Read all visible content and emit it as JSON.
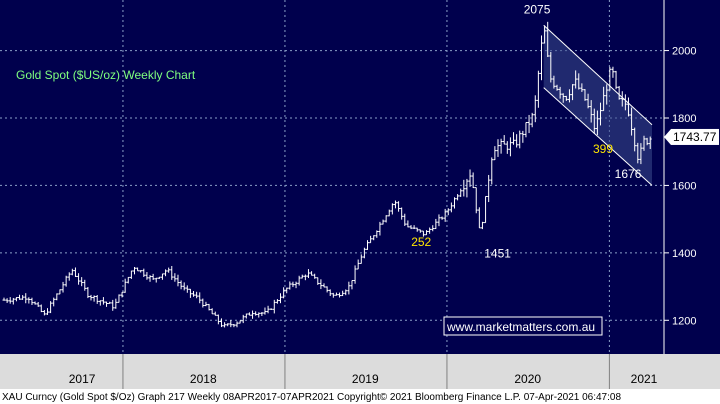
{
  "chart_data": {
    "type": "candlestick",
    "title": "Gold Spot ($US/oz) Weekly Chart",
    "ylim": [
      1100,
      2150
    ],
    "yticks": [
      1200,
      1400,
      1600,
      1800,
      2000
    ],
    "x_range": [
      "2017-04-08",
      "2021-04-07"
    ],
    "x_labels": [
      "2017",
      "2018",
      "2019",
      "2020",
      "2021"
    ],
    "last_value": "1743.77",
    "grid": true,
    "path": [
      [
        "2017-04-08",
        1260
      ],
      [
        "2017-06-01",
        1270
      ],
      [
        "2017-07-08",
        1215
      ],
      [
        "2017-09-08",
        1350
      ],
      [
        "2017-10-15",
        1275
      ],
      [
        "2017-12-12",
        1240
      ],
      [
        "2018-01-25",
        1360
      ],
      [
        "2018-03-10",
        1320
      ],
      [
        "2018-04-10",
        1350
      ],
      [
        "2018-05-20",
        1290
      ],
      [
        "2018-06-20",
        1265
      ],
      [
        "2018-08-16",
        1180
      ],
      [
        "2018-09-15",
        1195
      ],
      [
        "2018-10-20",
        1225
      ],
      [
        "2018-11-20",
        1220
      ],
      [
        "2019-01-01",
        1290
      ],
      [
        "2019-02-20",
        1340
      ],
      [
        "2019-04-23",
        1270
      ],
      [
        "2019-05-25",
        1300
      ],
      [
        "2019-06-25",
        1400
      ],
      [
        "2019-08-10",
        1500
      ],
      [
        "2019-09-05",
        1555
      ],
      [
        "2019-10-01",
        1480
      ],
      [
        "2019-11-12",
        1455
      ],
      [
        "2019-12-31",
        1520
      ],
      [
        "2020-02-24",
        1640
      ],
      [
        "2020-03-16",
        1451
      ],
      [
        "2020-04-14",
        1715
      ],
      [
        "2020-06-01",
        1720
      ],
      [
        "2020-07-15",
        1810
      ],
      [
        "2020-08-06",
        2075
      ],
      [
        "2020-08-20",
        1920
      ],
      [
        "2020-09-24",
        1860
      ],
      [
        "2020-10-15",
        1910
      ],
      [
        "2020-11-09",
        1850
      ],
      [
        "2020-11-30",
        1765
      ],
      [
        "2021-01-06",
        1950
      ],
      [
        "2021-01-20",
        1850
      ],
      [
        "2021-02-10",
        1840
      ],
      [
        "2021-03-08",
        1676
      ],
      [
        "2021-03-20",
        1730
      ],
      [
        "2021-04-07",
        1743.77
      ]
    ],
    "channel": {
      "upper": [
        [
          "2020-08-06",
          2075
        ],
        [
          "2021-04-07",
          1780
        ]
      ],
      "lower": [
        [
          "2020-08-06",
          1890
        ],
        [
          "2021-04-07",
          1600
        ]
      ]
    },
    "annotations": [
      {
        "text": "2075",
        "date": "2020-08-06",
        "y": 2075,
        "color": "#ffffff"
      },
      {
        "text": "399",
        "date": "2020-11-25",
        "y": 1755,
        "color": "#ffe600"
      },
      {
        "text": "1676",
        "date": "2021-03-08",
        "y": 1676,
        "color": "#ffffff"
      },
      {
        "text": "252",
        "date": "2019-12-01",
        "y": 1420,
        "color": "#ffe600"
      },
      {
        "text": "1451",
        "date": "2020-03-16",
        "y": 1451,
        "color": "#ffffff"
      }
    ],
    "colors": {
      "background": "#00004d",
      "price": "#ffffff",
      "channel_fill": "#3a4a8c",
      "grid": "#8aa0c8",
      "title": "#7fff7f",
      "axis_bar": "#dcdcdc"
    }
  },
  "watermark": "www.marketmatters.com.au",
  "footer": "XAU Curncy (Gold Spot  $/Oz) Graph 217  Weekly 08APR2017-07APR2021 Copyright© 2021 Bloomberg Finance L.P.  07-Apr-2021 06:47:08"
}
